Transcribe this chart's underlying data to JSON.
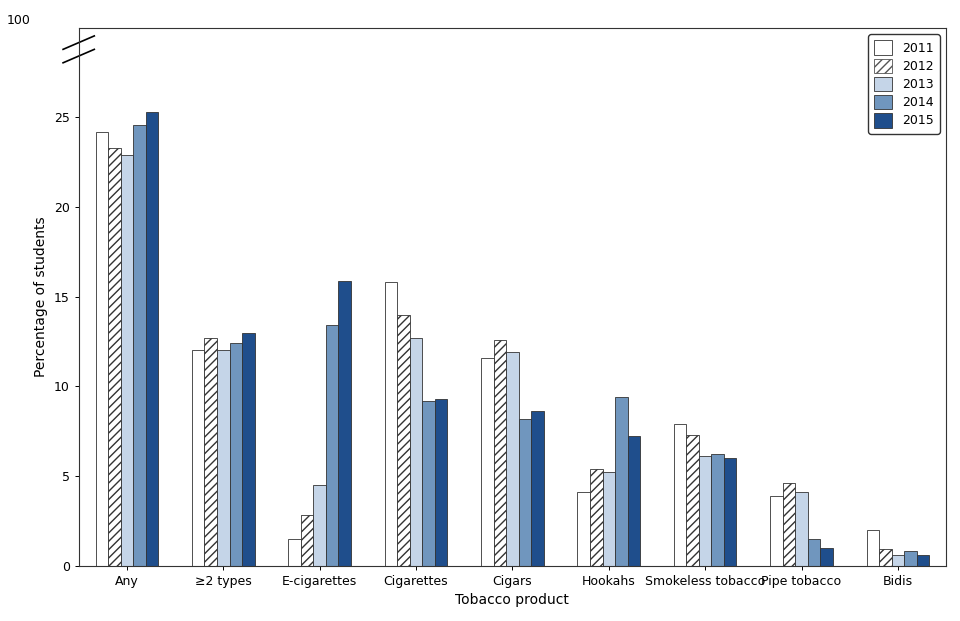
{
  "categories": [
    "Any",
    "≥2 types",
    "E-cigarettes",
    "Cigarettes",
    "Cigars",
    "Hookahs",
    "Smokeless tobacco",
    "Pipe tobacco",
    "Bidis"
  ],
  "years": [
    "2011",
    "2012",
    "2013",
    "2014",
    "2015"
  ],
  "values": {
    "Any": [
      24.2,
      23.3,
      22.9,
      24.6,
      25.3
    ],
    "≥2 types": [
      12.0,
      12.7,
      12.0,
      12.4,
      13.0
    ],
    "E-cigarettes": [
      1.5,
      2.8,
      4.5,
      13.4,
      15.9
    ],
    "Cigarettes": [
      15.8,
      14.0,
      12.7,
      9.2,
      9.3
    ],
    "Cigars": [
      11.6,
      12.6,
      11.9,
      8.2,
      8.6
    ],
    "Hookahs": [
      4.1,
      5.4,
      5.2,
      9.4,
      7.2
    ],
    "Smokeless tobacco": [
      7.9,
      7.3,
      6.1,
      6.2,
      6.0
    ],
    "Pipe tobacco": [
      3.9,
      4.6,
      4.1,
      1.5,
      1.0
    ],
    "Bidis": [
      2.0,
      0.9,
      0.6,
      0.8,
      0.6
    ]
  },
  "colors": [
    "#ffffff",
    "#ffffff",
    "#c5d5e8",
    "#7096be",
    "#1f4e8c"
  ],
  "hatch": [
    null,
    "////",
    null,
    null,
    null
  ],
  "edgecolors": [
    "#333333",
    "#555555",
    "#7096be",
    "#4a78aa",
    "#1f4e8c"
  ],
  "bar_edgecolor": "#333333",
  "ylabel": "Percentage of students",
  "xlabel": "Tobacco product",
  "ylim": [
    0,
    30
  ],
  "yticks": [
    0,
    5,
    10,
    15,
    20,
    25
  ],
  "bar_width": 0.13,
  "background_color": "#ffffff",
  "top_label": "100",
  "spine_color": "#333333"
}
